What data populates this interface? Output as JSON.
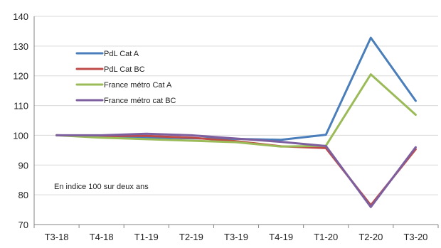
{
  "chart_data": {
    "type": "line",
    "categories": [
      "T3-18",
      "T4-18",
      "T1-19",
      "T2-19",
      "T3-19",
      "T4-19",
      "T1-20",
      "T2-20",
      "T3-20"
    ],
    "ylim": [
      70,
      140
    ],
    "yticks": [
      70,
      80,
      90,
      100,
      110,
      120,
      130,
      140
    ],
    "grid": "horizontal",
    "legend_position": "top-left",
    "annotation": "En indice 100 sur deux ans",
    "series": [
      {
        "name": "PdL Cat A",
        "color": "#4a7ebb",
        "values": [
          100,
          99.8,
          99.3,
          99.0,
          98.8,
          98.5,
          100.2,
          132.8,
          111.6
        ]
      },
      {
        "name": "PdL Cat BC",
        "color": "#be4b48",
        "values": [
          100,
          99.8,
          99.8,
          99.2,
          98.0,
          96.3,
          95.7,
          76.5,
          95.3
        ]
      },
      {
        "name": "France métro Cat A",
        "color": "#9bbb59",
        "values": [
          100,
          99.2,
          98.7,
          98.2,
          97.7,
          96.2,
          96.5,
          120.5,
          106.9
        ]
      },
      {
        "name": "France métro cat BC",
        "color": "#7d5fa0",
        "values": [
          100,
          100.0,
          100.5,
          100.0,
          98.9,
          97.8,
          96.4,
          75.9,
          96.0
        ]
      }
    ]
  }
}
